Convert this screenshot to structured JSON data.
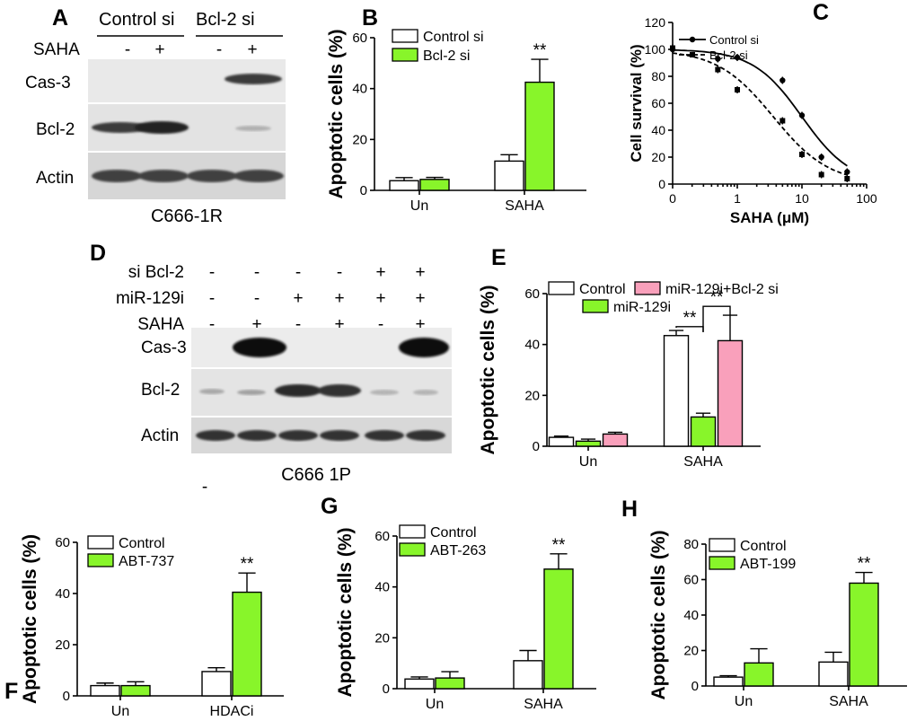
{
  "panels": {
    "A": {
      "letter": "A",
      "headers": [
        "Control si",
        "Bcl-2 si"
      ],
      "treatment_label": "SAHA",
      "treatment_signs": [
        "-",
        "+",
        "-",
        "+"
      ],
      "rows": [
        "Cas-3",
        "Bcl-2",
        "Actin"
      ],
      "cell_line": "C666-1R"
    },
    "D": {
      "letter": "D",
      "treatment_rows": [
        {
          "label": "si Bcl-2",
          "signs": [
            "-",
            "-",
            "-",
            "-",
            "+",
            "+"
          ]
        },
        {
          "label": "miR-129i",
          "signs": [
            "-",
            "-",
            "+",
            "+",
            "+",
            "+"
          ]
        },
        {
          "label": "SAHA",
          "signs": [
            "-",
            "+",
            "-",
            "+",
            "-",
            "+"
          ]
        }
      ],
      "rows": [
        "Cas-3",
        "Bcl-2",
        "Actin"
      ],
      "cell_line": "C666 1P",
      "stray_mark": "-"
    }
  },
  "colors": {
    "control": "#ffffff",
    "green": "#88f52a",
    "pink": "#f9a0bb",
    "blot_bg": "#e6e6e6"
  },
  "chart_data": [
    {
      "panel": "B",
      "type": "bar",
      "ylabel": "Apoptotic cells (%)",
      "categories": [
        "Un",
        "SAHA"
      ],
      "ylim": [
        0,
        60
      ],
      "yticks": [
        0,
        20,
        40,
        60
      ],
      "series": [
        {
          "name": "Control si",
          "values": [
            3.8,
            11.5
          ],
          "errors": [
            1.2,
            2.5
          ],
          "color": "#ffffff"
        },
        {
          "name": "Bcl-2 si",
          "values": [
            4.3,
            42.5
          ],
          "errors": [
            0.8,
            9.0
          ],
          "color": "#88f52a"
        }
      ],
      "annotations": [
        {
          "text": "**",
          "category": 1,
          "series": 1
        }
      ]
    },
    {
      "panel": "C",
      "type": "line",
      "xlabel": "SAHA (μM)",
      "ylabel": "Cell survival (%)",
      "xscale": "log",
      "xticks": [
        "0",
        "1",
        "10",
        "100"
      ],
      "ylim": [
        0,
        120
      ],
      "yticks": [
        0,
        20,
        40,
        60,
        80,
        100,
        120
      ],
      "series": [
        {
          "name": "Control si",
          "style": "solid",
          "x": [
            0.1,
            0.5,
            1,
            5,
            10,
            20,
            50
          ],
          "y": [
            100,
            93,
            94,
            77,
            51,
            20,
            9
          ]
        },
        {
          "name": "Bcl-2 si",
          "style": "dashed",
          "x": [
            0.1,
            0.5,
            1,
            5,
            10,
            20,
            50
          ],
          "y": [
            101,
            85,
            70,
            47,
            22,
            7,
            4
          ]
        }
      ]
    },
    {
      "panel": "E",
      "type": "bar",
      "ylabel": "Apoptotic cells (%)",
      "categories": [
        "Un",
        "SAHA"
      ],
      "ylim": [
        0,
        60
      ],
      "yticks": [
        0,
        20,
        40,
        60
      ],
      "series": [
        {
          "name": "Control",
          "values": [
            3.5,
            43.5
          ],
          "errors": [
            0.5,
            2.0
          ],
          "color": "#ffffff"
        },
        {
          "name": "miR-129i",
          "values": [
            2.0,
            11.5
          ],
          "errors": [
            0.8,
            1.5
          ],
          "color": "#88f52a"
        },
        {
          "name": "miR-129i+Bcl-2 si",
          "values": [
            4.8,
            41.5
          ],
          "errors": [
            0.7,
            10.0
          ],
          "color": "#f9a0bb"
        }
      ],
      "annotations": [
        {
          "text": "**",
          "between": [
            0,
            1
          ]
        },
        {
          "text": "**",
          "between": [
            1,
            2
          ]
        }
      ]
    },
    {
      "panel": "F",
      "type": "bar",
      "ylabel": "Apoptotic cells (%)",
      "categories": [
        "Un",
        "HDACi"
      ],
      "ylim": [
        0,
        60
      ],
      "yticks": [
        0,
        20,
        40,
        60
      ],
      "series": [
        {
          "name": "Control",
          "values": [
            4.0,
            9.5
          ],
          "errors": [
            1.0,
            1.5
          ],
          "color": "#ffffff"
        },
        {
          "name": "ABT-737",
          "values": [
            4.0,
            40.5
          ],
          "errors": [
            1.5,
            7.5
          ],
          "color": "#88f52a"
        }
      ],
      "annotations": [
        {
          "text": "**",
          "category": 1,
          "series": 1
        }
      ]
    },
    {
      "panel": "G",
      "type": "bar",
      "ylabel": "Apoptotic cells (%)",
      "categories": [
        "Un",
        "SAHA"
      ],
      "ylim": [
        0,
        60
      ],
      "yticks": [
        0,
        20,
        40,
        60
      ],
      "series": [
        {
          "name": "Control",
          "values": [
            3.8,
            11.0
          ],
          "errors": [
            0.8,
            4.0
          ],
          "color": "#ffffff"
        },
        {
          "name": "ABT-263",
          "values": [
            4.2,
            47.0
          ],
          "errors": [
            2.5,
            6.0
          ],
          "color": "#88f52a"
        }
      ],
      "annotations": [
        {
          "text": "**",
          "category": 1,
          "series": 1
        }
      ]
    },
    {
      "panel": "H",
      "type": "bar",
      "ylabel": "Apoptotic cells (%)",
      "categories": [
        "Un",
        "SAHA"
      ],
      "ylim": [
        0,
        80
      ],
      "yticks": [
        0,
        20,
        40,
        60,
        80
      ],
      "series": [
        {
          "name": "Control",
          "values": [
            5.0,
            13.5
          ],
          "errors": [
            0.8,
            5.5
          ],
          "color": "#ffffff"
        },
        {
          "name": "ABT-199",
          "values": [
            13.0,
            58.0
          ],
          "errors": [
            8.0,
            6.0
          ],
          "color": "#88f52a"
        }
      ],
      "annotations": [
        {
          "text": "**",
          "category": 1,
          "series": 1
        }
      ]
    }
  ]
}
